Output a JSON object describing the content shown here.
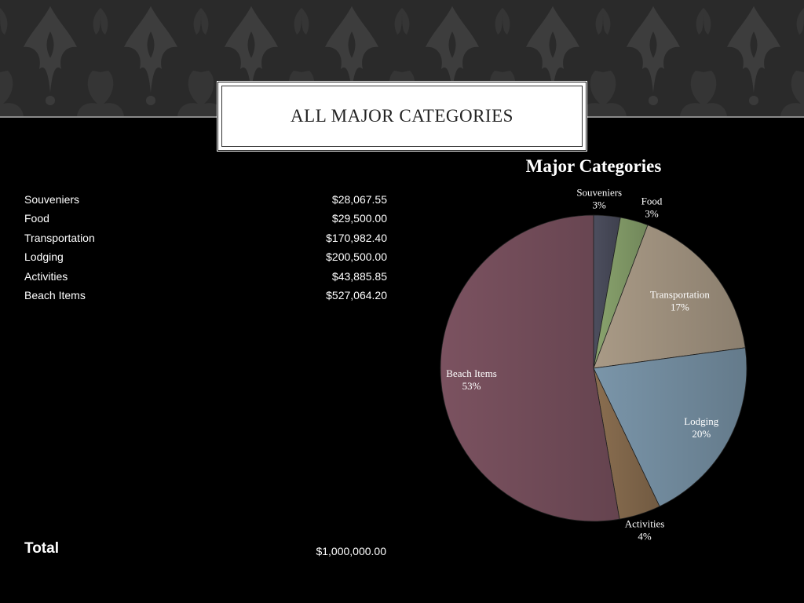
{
  "slide": {
    "title": "All Major Categories"
  },
  "table": {
    "rows": [
      {
        "label": "Souveniers",
        "value": "$28,067.55"
      },
      {
        "label": "Food",
        "value": "$29,500.00"
      },
      {
        "label": "Transportation",
        "value": "$170,982.40"
      },
      {
        "label": "Lodging",
        "value": "$200,500.00"
      },
      {
        "label": "Activities",
        "value": "$43,885.85"
      },
      {
        "label": "Beach Items",
        "value": "$527,064.20"
      }
    ],
    "total_label": "Total",
    "total_value": "$1,000,000.00"
  },
  "chart_data": {
    "type": "pie",
    "title": "Major Categories",
    "categories": [
      "Souveniers",
      "Food",
      "Transportation",
      "Lodging",
      "Activities",
      "Beach Items"
    ],
    "values": [
      28067.55,
      29500.0,
      170982.4,
      200500.0,
      43885.85,
      527064.2
    ],
    "data_labels": [
      "3%",
      "3%",
      "17%",
      "20%",
      "4%",
      "53%"
    ],
    "colors": [
      "#4c4e5e",
      "#8aa46e",
      "#a99a86",
      "#7a95a9",
      "#8a6e50",
      "#7b5260"
    ]
  }
}
